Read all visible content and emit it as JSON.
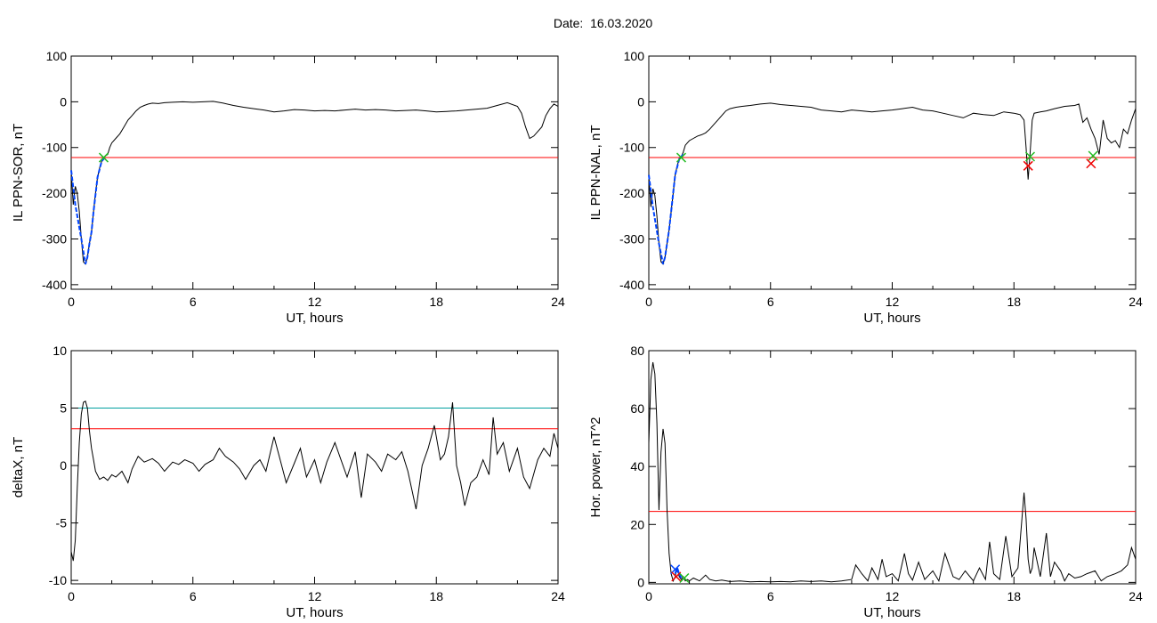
{
  "page": {
    "date_label": "Date:",
    "date_value": "16.03.2020"
  },
  "colors": {
    "trace": "#000000",
    "threshold_red": "#ff0000",
    "threshold_teal": "#00a0a0",
    "event_blue": "#0044ff",
    "marker_green": "#22bb22",
    "marker_red": "#ee0000"
  },
  "chart_data": [
    {
      "id": "sor",
      "type": "line",
      "xlabel": "UT, hours",
      "ylabel": "IL PPN-SOR, nT",
      "xlim": [
        0,
        24
      ],
      "ylim": [
        -410,
        100
      ],
      "xticks": [
        0,
        6,
        12,
        18,
        24
      ],
      "yticks": [
        100,
        0,
        -100,
        -200,
        -300,
        -400
      ],
      "grid": false,
      "series": [
        {
          "x": [
            0,
            0.1,
            0.2,
            0.3,
            0.4,
            0.5,
            0.6,
            0.7,
            0.8,
            0.9,
            1.0,
            1.1,
            1.2,
            1.3,
            1.4,
            1.5,
            1.6,
            1.7,
            1.8,
            1.9,
            2.0,
            2.2,
            2.4,
            2.6,
            2.8,
            3.0,
            3.2,
            3.4,
            3.6,
            3.8,
            4.0,
            4.3,
            4.6,
            5.0,
            5.5,
            6.0,
            6.5,
            7.0,
            7.5,
            8.0,
            8.5,
            9.0,
            9.5,
            10.0,
            10.5,
            11.0,
            11.5,
            12.0,
            12.5,
            13.0,
            13.5,
            14.0,
            14.5,
            15.0,
            15.5,
            16.0,
            16.5,
            17.0,
            17.5,
            18.0,
            18.5,
            19.0,
            19.5,
            20.0,
            20.5,
            21.0,
            21.5,
            22.0,
            22.2,
            22.4,
            22.6,
            22.8,
            23.0,
            23.2,
            23.4,
            23.6,
            23.8,
            24.0
          ],
          "y": [
            -150,
            -225,
            -185,
            -200,
            -240,
            -300,
            -350,
            -355,
            -340,
            -310,
            -285,
            -240,
            -200,
            -165,
            -145,
            -130,
            -122,
            -118,
            -115,
            -100,
            -90,
            -80,
            -70,
            -55,
            -40,
            -30,
            -20,
            -12,
            -8,
            -5,
            -3,
            -4,
            -2,
            -1,
            0,
            -1,
            0,
            1,
            -3,
            -8,
            -12,
            -15,
            -18,
            -22,
            -20,
            -17,
            -18,
            -20,
            -19,
            -20,
            -18,
            -16,
            -18,
            -17,
            -18,
            -20,
            -19,
            -18,
            -20,
            -22,
            -21,
            -20,
            -18,
            -16,
            -14,
            -8,
            -2,
            -10,
            -25,
            -55,
            -80,
            -75,
            -65,
            -55,
            -30,
            -15,
            -5,
            -10
          ]
        }
      ],
      "event": {
        "x": [
          0,
          0.2,
          0.5,
          0.7,
          0.8,
          0.9,
          1.0,
          1.1,
          1.3,
          1.5,
          1.7
        ],
        "y": [
          -150,
          -225,
          -300,
          -355,
          -340,
          -310,
          -285,
          -240,
          -165,
          -130,
          -120
        ]
      },
      "thresholds": [
        {
          "y": -122,
          "color": "red"
        }
      ],
      "markers": [
        {
          "x": 1.6,
          "y": -122,
          "color": "green"
        }
      ]
    },
    {
      "id": "nal",
      "type": "line",
      "xlabel": "UT, hours",
      "ylabel": "IL PPN-NAL, nT",
      "xlim": [
        0,
        24
      ],
      "ylim": [
        -410,
        100
      ],
      "xticks": [
        0,
        6,
        12,
        18,
        24
      ],
      "yticks": [
        100,
        0,
        -100,
        -200,
        -300,
        -400
      ],
      "grid": false,
      "series": [
        {
          "x": [
            0,
            0.1,
            0.2,
            0.3,
            0.4,
            0.5,
            0.6,
            0.7,
            0.8,
            0.9,
            1.0,
            1.1,
            1.2,
            1.3,
            1.4,
            1.5,
            1.6,
            1.7,
            1.8,
            1.9,
            2.0,
            2.2,
            2.4,
            2.6,
            2.8,
            3.0,
            3.2,
            3.4,
            3.6,
            3.8,
            4.0,
            4.3,
            4.6,
            5.0,
            5.5,
            6.0,
            6.5,
            7.0,
            7.5,
            8.0,
            8.5,
            9.0,
            9.5,
            10.0,
            10.5,
            11.0,
            11.5,
            12.0,
            12.5,
            13.0,
            13.5,
            14.0,
            14.5,
            15.0,
            15.5,
            16.0,
            16.5,
            17.0,
            17.5,
            18.0,
            18.3,
            18.5,
            18.6,
            18.7,
            18.8,
            18.9,
            19.0,
            19.3,
            19.6,
            20.0,
            20.5,
            21.0,
            21.2,
            21.4,
            21.6,
            21.8,
            22.0,
            22.2,
            22.4,
            22.6,
            22.8,
            23.0,
            23.2,
            23.4,
            23.6,
            23.8,
            24.0
          ],
          "y": [
            -160,
            -230,
            -190,
            -205,
            -250,
            -310,
            -350,
            -355,
            -340,
            -310,
            -280,
            -240,
            -200,
            -160,
            -140,
            -125,
            -120,
            -110,
            -95,
            -90,
            -85,
            -80,
            -75,
            -72,
            -68,
            -60,
            -50,
            -40,
            -30,
            -20,
            -15,
            -12,
            -10,
            -8,
            -5,
            -3,
            -6,
            -8,
            -10,
            -12,
            -18,
            -20,
            -22,
            -18,
            -20,
            -22,
            -20,
            -18,
            -15,
            -12,
            -18,
            -20,
            -25,
            -30,
            -35,
            -25,
            -28,
            -30,
            -22,
            -25,
            -28,
            -40,
            -100,
            -170,
            -110,
            -40,
            -25,
            -22,
            -20,
            -15,
            -10,
            -8,
            -5,
            -45,
            -35,
            -60,
            -80,
            -115,
            -40,
            -80,
            -90,
            -85,
            -100,
            -60,
            -70,
            -40,
            -15
          ]
        }
      ],
      "event": {
        "x": [
          0,
          0.2,
          0.5,
          0.7,
          0.8,
          0.9,
          1.0,
          1.1,
          1.3,
          1.5,
          1.7
        ],
        "y": [
          -160,
          -230,
          -310,
          -355,
          -340,
          -310,
          -280,
          -240,
          -160,
          -125,
          -115
        ]
      },
      "thresholds": [
        {
          "y": -122,
          "color": "red"
        }
      ],
      "markers": [
        {
          "x": 1.6,
          "y": -122,
          "color": "green"
        },
        {
          "x": 18.7,
          "y": -140,
          "color": "red"
        },
        {
          "x": 18.8,
          "y": -120,
          "color": "green"
        },
        {
          "x": 21.8,
          "y": -135,
          "color": "red"
        },
        {
          "x": 21.9,
          "y": -118,
          "color": "green"
        }
      ]
    },
    {
      "id": "deltax",
      "type": "line",
      "xlabel": "UT, hours",
      "ylabel": "deltaX, nT",
      "xlim": [
        0,
        24
      ],
      "ylim": [
        -10.3,
        10
      ],
      "xticks": [
        0,
        6,
        12,
        18,
        24
      ],
      "yticks": [
        10,
        5,
        0,
        -5,
        -10
      ],
      "grid": false,
      "series": [
        {
          "x": [
            0,
            0.1,
            0.2,
            0.3,
            0.4,
            0.5,
            0.6,
            0.7,
            0.8,
            0.9,
            1.0,
            1.1,
            1.2,
            1.4,
            1.6,
            1.8,
            2.0,
            2.2,
            2.5,
            2.8,
            3.0,
            3.3,
            3.6,
            4.0,
            4.3,
            4.6,
            5.0,
            5.3,
            5.6,
            6.0,
            6.3,
            6.6,
            7.0,
            7.3,
            7.6,
            8.0,
            8.3,
            8.6,
            9.0,
            9.3,
            9.6,
            10.0,
            10.3,
            10.6,
            11.0,
            11.3,
            11.6,
            12.0,
            12.3,
            12.6,
            13.0,
            13.3,
            13.6,
            14.0,
            14.3,
            14.6,
            15.0,
            15.3,
            15.6,
            16.0,
            16.3,
            16.6,
            17.0,
            17.3,
            17.6,
            17.9,
            18.2,
            18.4,
            18.6,
            18.7,
            18.8,
            19.0,
            19.2,
            19.4,
            19.7,
            20.0,
            20.3,
            20.6,
            20.8,
            21.0,
            21.3,
            21.6,
            22.0,
            22.3,
            22.6,
            23.0,
            23.3,
            23.6,
            23.8,
            24.0
          ],
          "y": [
            -7.5,
            -8.3,
            -6.5,
            -2.0,
            2.0,
            4.5,
            5.5,
            5.6,
            5.0,
            3.0,
            1.5,
            0.5,
            -0.5,
            -1.2,
            -1.0,
            -1.3,
            -0.8,
            -1.0,
            -0.5,
            -1.5,
            -0.3,
            0.8,
            0.3,
            0.6,
            0.2,
            -0.5,
            0.3,
            0.1,
            0.5,
            0.2,
            -0.5,
            0.1,
            0.5,
            1.5,
            0.8,
            0.3,
            -0.3,
            -1.2,
            0.0,
            0.5,
            -0.5,
            2.5,
            0.5,
            -1.5,
            0.2,
            1.5,
            -1.0,
            0.5,
            -1.5,
            0.3,
            2.0,
            0.5,
            -1.0,
            1.2,
            -2.8,
            1.0,
            0.3,
            -0.5,
            1.0,
            0.5,
            1.2,
            -0.5,
            -3.8,
            0.0,
            1.5,
            3.5,
            0.5,
            1.0,
            2.5,
            4.0,
            5.5,
            0.0,
            -1.5,
            -3.5,
            -1.5,
            -1.0,
            0.5,
            -0.8,
            4.2,
            1.0,
            2.0,
            -0.5,
            1.5,
            -1.0,
            -2.0,
            0.5,
            1.5,
            0.8,
            2.8,
            1.5
          ]
        }
      ],
      "thresholds": [
        {
          "y": 5.0,
          "color": "teal"
        },
        {
          "y": 3.2,
          "color": "red"
        }
      ],
      "markers": []
    },
    {
      "id": "power",
      "type": "line",
      "xlabel": "UT, hours",
      "ylabel": "Hor. power, nT^2",
      "xlim": [
        0,
        24
      ],
      "ylim": [
        -0.5,
        80
      ],
      "xticks": [
        0,
        6,
        12,
        18,
        24
      ],
      "yticks": [
        80,
        60,
        40,
        20,
        0
      ],
      "grid": false,
      "series": [
        {
          "x": [
            0,
            0.1,
            0.2,
            0.3,
            0.4,
            0.5,
            0.6,
            0.7,
            0.8,
            0.9,
            1.0,
            1.1,
            1.2,
            1.3,
            1.4,
            1.5,
            1.6,
            1.7,
            1.8,
            1.9,
            2.0,
            2.2,
            2.5,
            2.8,
            3.0,
            3.3,
            3.6,
            4.0,
            4.5,
            5.0,
            5.5,
            6.0,
            6.5,
            7.0,
            7.5,
            8.0,
            8.5,
            9.0,
            9.5,
            10.0,
            10.2,
            10.5,
            10.8,
            11.0,
            11.3,
            11.5,
            11.7,
            12.0,
            12.3,
            12.6,
            12.8,
            13.0,
            13.3,
            13.6,
            14.0,
            14.3,
            14.6,
            15.0,
            15.3,
            15.6,
            16.0,
            16.3,
            16.6,
            16.8,
            17.0,
            17.3,
            17.6,
            17.9,
            18.2,
            18.5,
            18.6,
            18.7,
            18.8,
            18.9,
            19.0,
            19.3,
            19.6,
            19.8,
            20.0,
            20.3,
            20.5,
            20.7,
            21.0,
            21.3,
            21.6,
            22.0,
            22.3,
            22.6,
            23.0,
            23.3,
            23.6,
            23.8,
            24.0
          ],
          "y": [
            48,
            70,
            76,
            72,
            55,
            25,
            45,
            53,
            48,
            25,
            10,
            3,
            0.5,
            2,
            5,
            2,
            1,
            2,
            0.5,
            1,
            0.5,
            1.5,
            0.5,
            2.5,
            1,
            0.5,
            0.8,
            0.3,
            0.5,
            0.2,
            0.3,
            0.2,
            0.3,
            0.2,
            0.5,
            0.3,
            0.5,
            0.2,
            0.5,
            1,
            6,
            3,
            0.5,
            5,
            1,
            8,
            2,
            3,
            0.5,
            10,
            3,
            0.8,
            7,
            1,
            4,
            0.5,
            10,
            2,
            1,
            4,
            0.5,
            5,
            1,
            14,
            3,
            1,
            16,
            2,
            5,
            31,
            22,
            8,
            3,
            5,
            12,
            2,
            17,
            2,
            7,
            4,
            0.5,
            3,
            1.5,
            2,
            3,
            4,
            0.5,
            2,
            3,
            4,
            6,
            12,
            8
          ]
        }
      ],
      "event": {
        "x": [
          1.3,
          1.4,
          1.5,
          1.6
        ],
        "y": [
          3,
          5,
          3,
          1.5
        ]
      },
      "thresholds": [
        {
          "y": 24.5,
          "color": "red"
        }
      ],
      "markers": [
        {
          "x": 1.3,
          "y": 4.5,
          "color": "blue"
        },
        {
          "x": 1.35,
          "y": 2.0,
          "color": "red"
        },
        {
          "x": 1.75,
          "y": 1.5,
          "color": "green"
        }
      ]
    }
  ]
}
